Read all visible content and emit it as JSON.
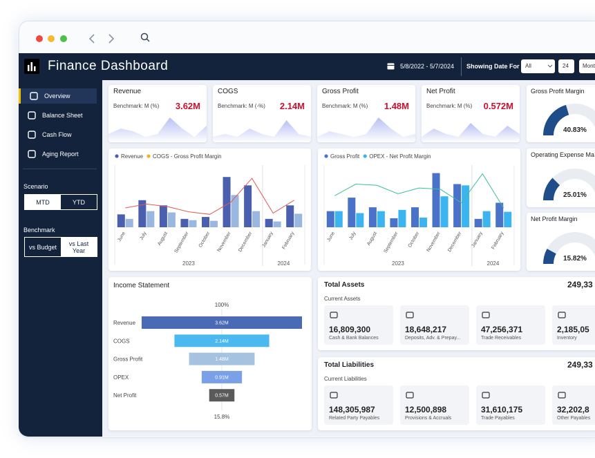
{
  "header": {
    "title": "Finance Dashboard",
    "date_range": "5/8/2022 - 5/7/2024",
    "showing_label": "Showing Date For :",
    "select_value": "All",
    "day_value": "24",
    "period_value": "Mont"
  },
  "sidebar": {
    "nav": [
      {
        "label": "Overview",
        "active": true
      },
      {
        "label": "Balance Sheet",
        "active": false
      },
      {
        "label": "Cash Flow",
        "active": false
      },
      {
        "label": "Aging Report",
        "active": false
      }
    ],
    "scenario_label": "Scenario",
    "scenario_options": [
      "MTD",
      "YTD"
    ],
    "scenario_active": 1,
    "benchmark_label": "Benchmark",
    "benchmark_options": [
      "vs Budget",
      "vs Last Year"
    ],
    "benchmark_active": 0
  },
  "kpis": [
    {
      "title": "Revenue",
      "benchmark": "Benchmark: M (%)",
      "value": "3.62M",
      "trend": [
        3,
        5,
        4,
        2,
        3,
        9,
        5,
        2,
        6
      ],
      "trend_ylim": [
        0,
        10
      ]
    },
    {
      "title": "COGS",
      "benchmark": "Benchmark: M (-%)",
      "value": "2.14M",
      "trend": [
        2,
        3,
        2,
        5,
        3,
        2,
        8,
        3,
        2
      ],
      "trend_ylim": [
        0,
        10
      ]
    },
    {
      "title": "Gross Profit",
      "benchmark": "Benchmark: M (%)",
      "value": "1.48M",
      "trend": [
        2,
        4,
        3,
        2,
        3,
        9,
        5,
        2,
        3
      ],
      "trend_ylim": [
        0,
        10
      ]
    },
    {
      "title": "Net Profit",
      "benchmark": "Benchmark: M (%)",
      "value": "0.572M",
      "trend": [
        2,
        5,
        3,
        2,
        7,
        3,
        2,
        6,
        3
      ],
      "trend_ylim": [
        0,
        10
      ]
    }
  ],
  "chart_data": [
    {
      "type": "bar",
      "legend": [
        {
          "label": "Revenue",
          "color": "#4a5fae"
        },
        {
          "label": "COGS - Gross Profit Margin",
          "color": "#f0b429"
        }
      ],
      "groups": [
        {
          "label": "2023",
          "categories": [
            "June",
            "July",
            "August",
            "September",
            "October",
            "November",
            "December"
          ]
        },
        {
          "label": "2024",
          "categories": [
            "January",
            "February"
          ]
        }
      ],
      "series": [
        {
          "type": "bar",
          "color": "#4a5fae",
          "values": [
            20,
            42,
            34,
            13,
            16,
            78,
            65,
            13,
            34
          ]
        },
        {
          "type": "bar",
          "color": "#9ab7df",
          "values": [
            13,
            25,
            23,
            11,
            10,
            50,
            25,
            9,
            21
          ]
        },
        {
          "type": "line",
          "color": "#e05a5a",
          "values": [
            30,
            36,
            32,
            24,
            20,
            39,
            76,
            22,
            42
          ]
        }
      ],
      "ylim": [
        0,
        90
      ]
    },
    {
      "type": "bar",
      "legend": [
        {
          "label": "Gross Profit",
          "color": "#4a72c8"
        },
        {
          "label": "OPEX - Net Profit Margin",
          "color": "#3cb4f0"
        }
      ],
      "groups": [
        {
          "label": "2023",
          "categories": [
            "June",
            "July",
            "August",
            "September",
            "October",
            "November",
            "December"
          ]
        },
        {
          "label": "2024",
          "categories": [
            "January",
            "February"
          ]
        }
      ],
      "series": [
        {
          "type": "bar",
          "color": "#4a72c8",
          "values": [
            25,
            46,
            31,
            14,
            31,
            84,
            67,
            13,
            38
          ]
        },
        {
          "type": "bar",
          "color": "#3cb4f0",
          "values": [
            25,
            22,
            25,
            27,
            15,
            48,
            65,
            25,
            24
          ]
        },
        {
          "type": "line",
          "color": "#3cbf9a",
          "values": [
            49,
            67,
            65,
            52,
            61,
            59,
            38,
            83,
            30
          ]
        }
      ],
      "ylim": [
        0,
        90
      ]
    },
    {
      "type": "funnel",
      "title": "Income Statement",
      "top_label": "100%",
      "bottom_label": "15.8%",
      "categories": [
        "Revenue",
        "COGS",
        "Gross Profit",
        "OPEX",
        "Net Profit"
      ],
      "values": [
        3.62,
        2.14,
        1.48,
        0.91,
        0.57
      ],
      "value_labels": [
        "3.62M",
        "2.14M",
        "1.48M",
        "0.91M",
        "0.57M"
      ],
      "colors": [
        "#4a6ab5",
        "#4bb8f0",
        "#a5c3e0",
        "#7aa0e8",
        "#5a5a5a"
      ]
    },
    {
      "type": "gauge",
      "title": "Gross Profit Margin",
      "value": 40.83,
      "value_label": "40.83%",
      "range": [
        0,
        100
      ],
      "color": "#1f4d8a"
    },
    {
      "type": "gauge",
      "title": "Operating Expense Ma",
      "value": 25.01,
      "value_label": "25.01%",
      "range": [
        0,
        100
      ],
      "color": "#1f4d8a"
    },
    {
      "type": "gauge",
      "title": "Net Profit Margin",
      "value": 15.82,
      "value_label": "15.82%",
      "range": [
        0,
        100
      ],
      "color": "#1f4d8a"
    }
  ],
  "assets": {
    "title": "Total Assets",
    "total": "249,33",
    "subtitle": "Current Assets",
    "items": [
      {
        "value": "16,809,300",
        "label": "Cash & Bank Balances"
      },
      {
        "value": "18,648,217",
        "label": "Deposits, Adv. & Prepay..."
      },
      {
        "value": "47,256,371",
        "label": "Trade Receivables"
      },
      {
        "value": "2,185,05",
        "label": "Inventory"
      }
    ]
  },
  "liabilities": {
    "title": "Total Liabilities",
    "total": "249,33",
    "subtitle": "Current Liabilities",
    "items": [
      {
        "value": "148,305,987",
        "label": "Related Party Payables"
      },
      {
        "value": "12,500,898",
        "label": "Provisions & Accruals"
      },
      {
        "value": "31,610,175",
        "label": "Trade Payables"
      },
      {
        "value": "32,202,8",
        "label": "Other Payables"
      }
    ]
  }
}
